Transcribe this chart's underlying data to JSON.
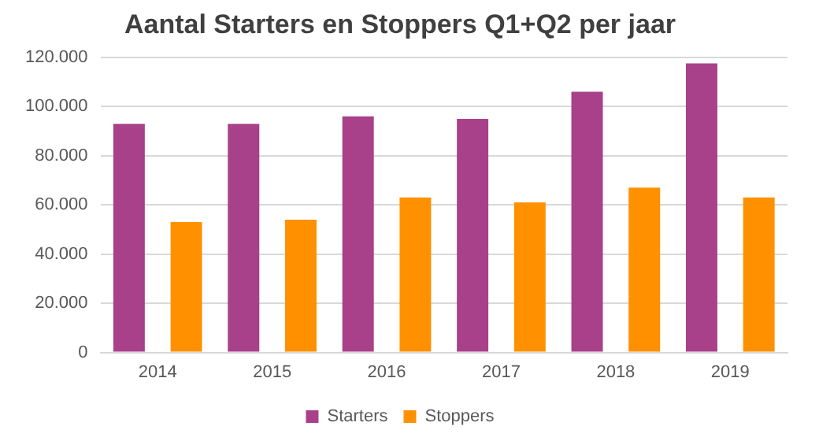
{
  "chart_data": {
    "type": "bar",
    "title": "Aantal Starters en Stoppers Q1+Q2 per jaar",
    "categories": [
      "2014",
      "2015",
      "2016",
      "2017",
      "2018",
      "2019"
    ],
    "series": [
      {
        "name": "Starters",
        "color": "#a84189",
        "values": [
          93000,
          93000,
          96000,
          95000,
          106000,
          117500
        ]
      },
      {
        "name": "Stoppers",
        "color": "#ff9100",
        "values": [
          53000,
          54000,
          63000,
          61000,
          67000,
          63000
        ]
      }
    ],
    "ylim": [
      0,
      120000
    ],
    "yticks": [
      0,
      {
        "value": 20000,
        "label": "20.000"
      },
      {
        "value": 40000,
        "label": "40.000"
      },
      {
        "value": 60000,
        "label": "60.000"
      },
      {
        "value": 80000,
        "label": "80.000"
      },
      {
        "value": 100000,
        "label": "100.000"
      },
      {
        "value": 120000,
        "label": "120.000"
      }
    ],
    "grid": "y",
    "legend": "bottom"
  }
}
